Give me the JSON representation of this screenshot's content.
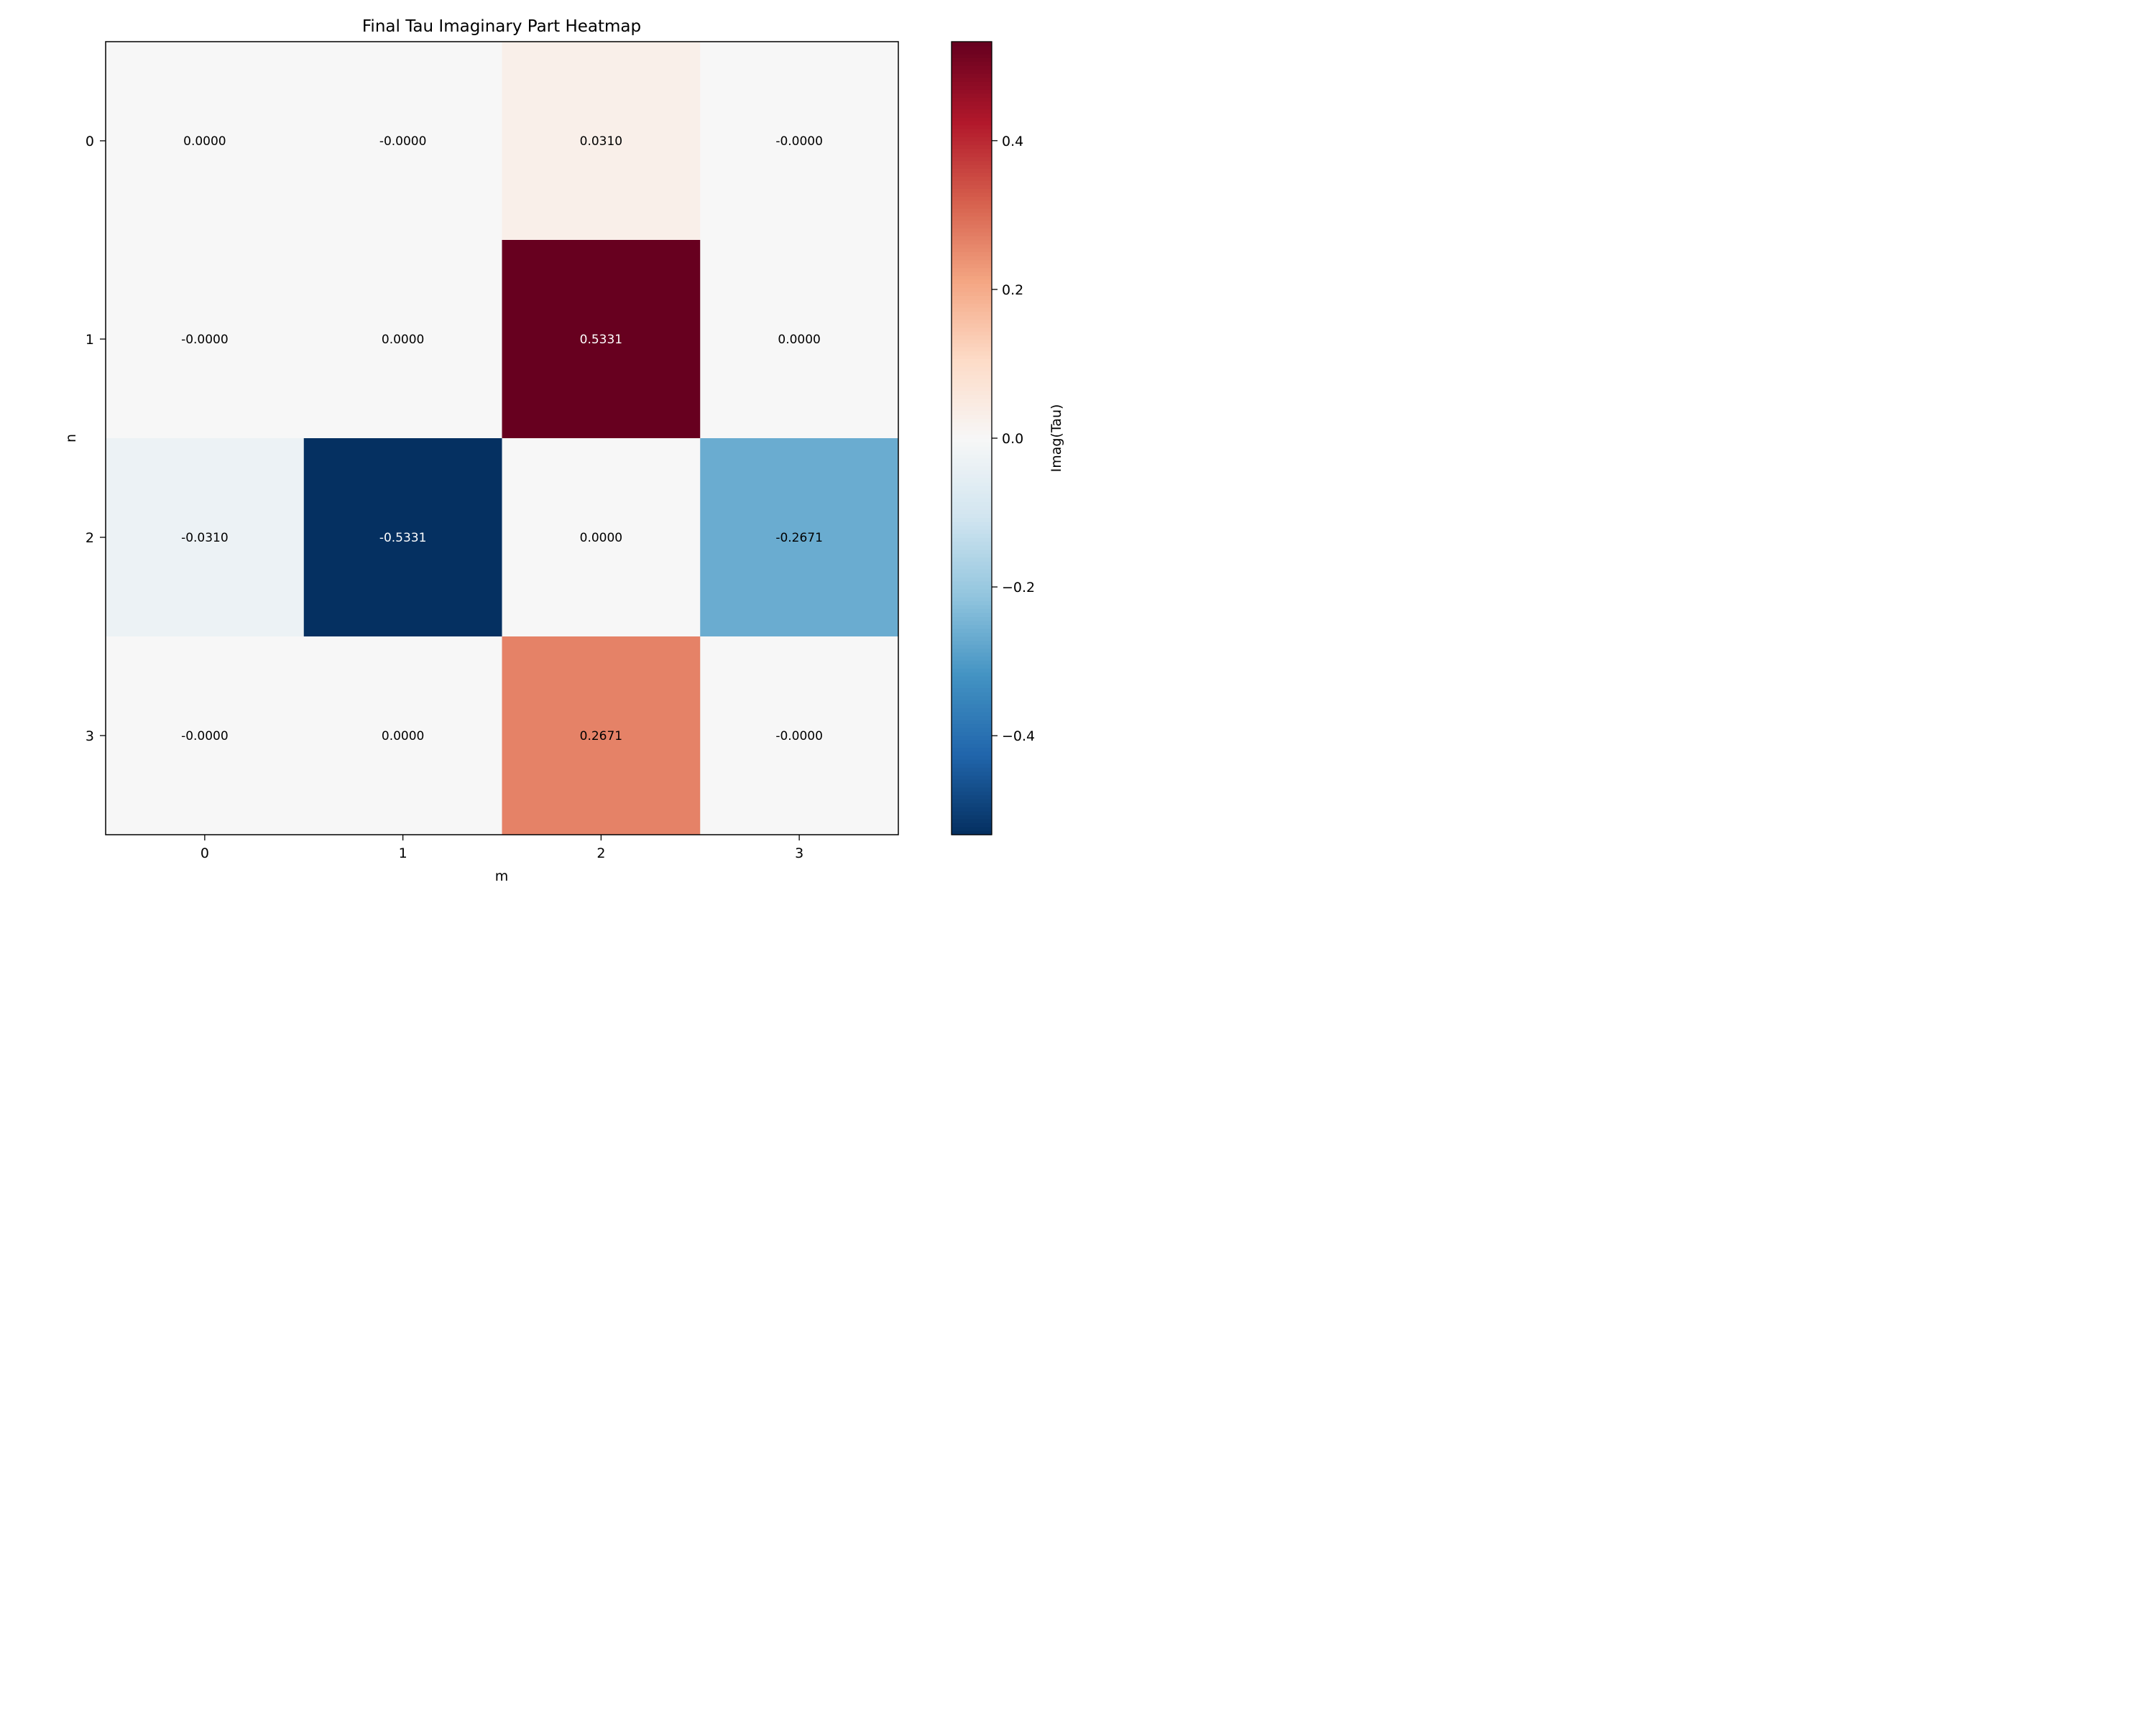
{
  "chart_data": {
    "type": "heatmap",
    "title": "Final Tau Imaginary Part Heatmap",
    "xlabel": "m",
    "ylabel": "n",
    "x_categories": [
      "0",
      "1",
      "2",
      "3"
    ],
    "y_categories": [
      "0",
      "1",
      "2",
      "3"
    ],
    "values": [
      [
        0.0,
        -0.0,
        0.031,
        -0.0
      ],
      [
        -0.0,
        0.0,
        0.5331,
        0.0
      ],
      [
        -0.031,
        -0.5331,
        0.0,
        -0.2671
      ],
      [
        -0.0,
        0.0,
        0.2671,
        -0.0
      ]
    ],
    "cell_labels": [
      [
        "0.0000",
        "-0.0000",
        "0.0310",
        "-0.0000"
      ],
      [
        "-0.0000",
        "0.0000",
        "0.5331",
        "0.0000"
      ],
      [
        "-0.0310",
        "-0.5331",
        "0.0000",
        "-0.2671"
      ],
      [
        "-0.0000",
        "0.0000",
        "0.2671",
        "-0.0000"
      ]
    ],
    "colormap": "RdBu_r",
    "vmin": -0.5331,
    "vmax": 0.5331,
    "colorbar": {
      "label": "Imag(Tau)",
      "ticks": [
        -0.4,
        -0.2,
        0.0,
        0.2,
        0.4
      ],
      "tick_labels": [
        "−0.4",
        "−0.2",
        "0.0",
        "0.2",
        "0.4"
      ]
    },
    "grid": false
  }
}
